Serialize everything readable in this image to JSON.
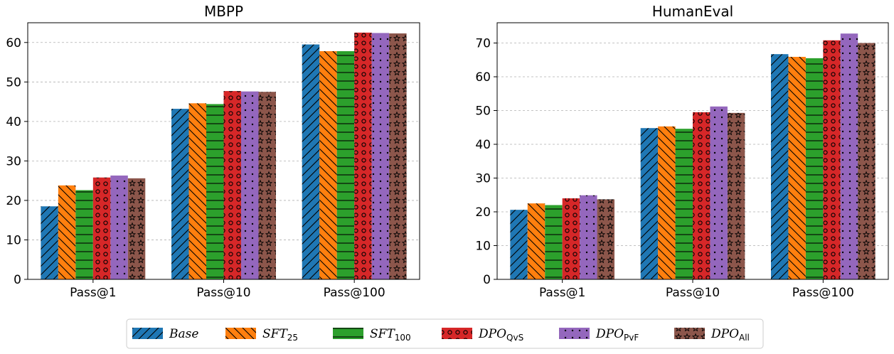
{
  "chart_data": [
    {
      "type": "bar",
      "title": "MBPP",
      "categories": [
        "Pass@1",
        "Pass@10",
        "Pass@100"
      ],
      "ylim": [
        0,
        65
      ],
      "yticks": [
        0,
        10,
        20,
        30,
        40,
        50,
        60
      ],
      "grid": true,
      "series": [
        {
          "name": "Base",
          "values": [
            18.5,
            43.2,
            59.5
          ]
        },
        {
          "name": "SFT25",
          "values": [
            23.8,
            44.6,
            57.8
          ]
        },
        {
          "name": "SFT100",
          "values": [
            22.6,
            44.4,
            57.8
          ]
        },
        {
          "name": "DPOQvS",
          "values": [
            25.8,
            47.7,
            62.5
          ]
        },
        {
          "name": "DPOPvF",
          "values": [
            26.3,
            47.6,
            62.4
          ]
        },
        {
          "name": "DPOAll",
          "values": [
            25.6,
            47.5,
            62.3
          ]
        }
      ]
    },
    {
      "type": "bar",
      "title": "HumanEval",
      "categories": [
        "Pass@1",
        "Pass@10",
        "Pass@100"
      ],
      "ylim": [
        0,
        76
      ],
      "yticks": [
        0,
        10,
        20,
        30,
        40,
        50,
        60,
        70
      ],
      "grid": true,
      "series": [
        {
          "name": "Base",
          "values": [
            20.6,
            44.8,
            66.7
          ]
        },
        {
          "name": "SFT25",
          "values": [
            22.5,
            45.3,
            65.9
          ]
        },
        {
          "name": "SFT100",
          "values": [
            22.0,
            44.6,
            65.5
          ]
        },
        {
          "name": "DPOQvS",
          "values": [
            24.0,
            49.5,
            70.8
          ]
        },
        {
          "name": "DPOPvF",
          "values": [
            24.9,
            51.2,
            72.8
          ]
        },
        {
          "name": "DPOAll",
          "values": [
            23.7,
            49.3,
            70.0
          ]
        }
      ]
    }
  ],
  "legend": {
    "placement": "bottom-center",
    "items": [
      {
        "main": "Base",
        "sub": ""
      },
      {
        "main": "SFT",
        "sub": "25"
      },
      {
        "main": "SFT",
        "sub": "100"
      },
      {
        "main": "DPO",
        "sub": "QvS"
      },
      {
        "main": "DPO",
        "sub": "PvF"
      },
      {
        "main": "DPO",
        "sub": "All"
      }
    ]
  },
  "colors": [
    "#1f77b4",
    "#ff7f0e",
    "#2ca02c",
    "#d62728",
    "#9467bd",
    "#8c564b"
  ],
  "hatches": [
    "slash",
    "backslash",
    "horizontal",
    "rings",
    "dots",
    "stars"
  ]
}
